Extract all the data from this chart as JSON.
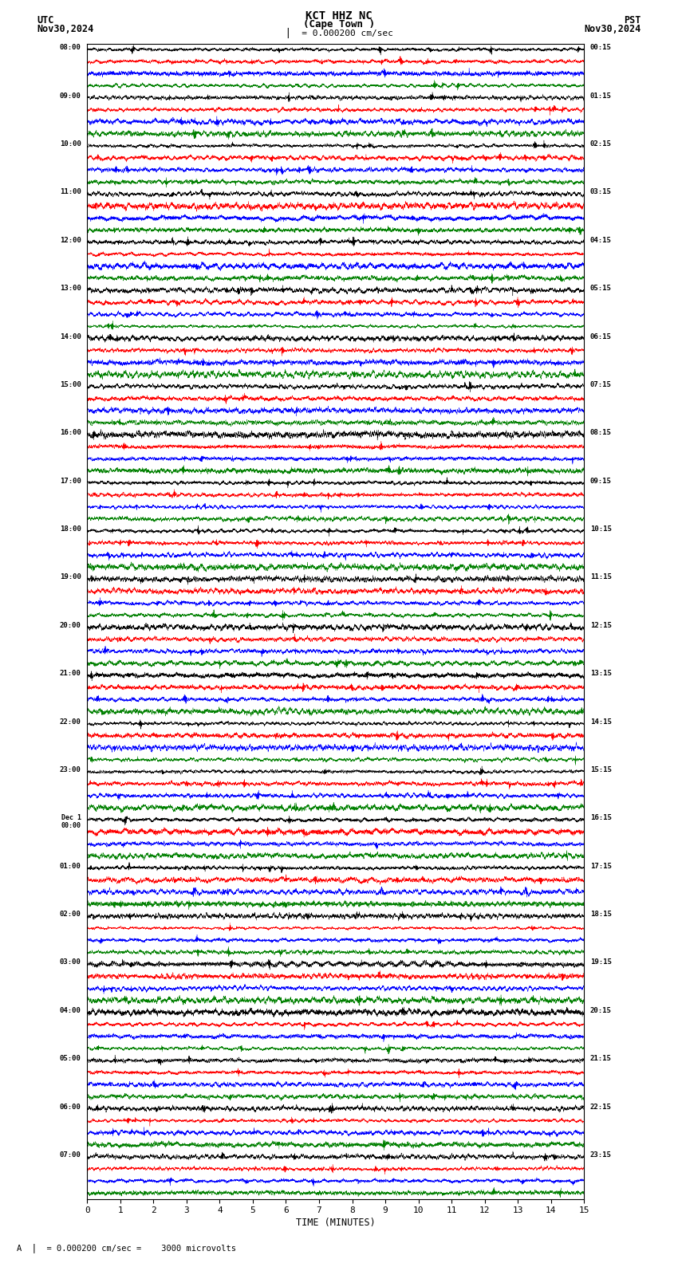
{
  "title_line1": "KCT HHZ NC",
  "title_line2": "(Cape Town )",
  "scale_label": "= 0.000200 cm/sec",
  "utc_label": "UTC",
  "utc_date": "Nov30,2024",
  "pst_label": "PST",
  "pst_date": "Nov30,2024",
  "xlabel": "TIME (MINUTES)",
  "bottom_label": "= 0.000200 cm/sec =    3000 microvolts",
  "xmin": 0,
  "xmax": 15,
  "xticks": [
    0,
    1,
    2,
    3,
    4,
    5,
    6,
    7,
    8,
    9,
    10,
    11,
    12,
    13,
    14,
    15
  ],
  "colors": [
    "black",
    "red",
    "blue",
    "green"
  ],
  "background": "white",
  "left_times": [
    "08:00",
    "09:00",
    "10:00",
    "11:00",
    "12:00",
    "13:00",
    "14:00",
    "15:00",
    "16:00",
    "17:00",
    "18:00",
    "19:00",
    "20:00",
    "21:00",
    "22:00",
    "23:00",
    "Dec 1\n00:00",
    "01:00",
    "02:00",
    "03:00",
    "04:00",
    "05:00",
    "06:00",
    "07:00"
  ],
  "right_times": [
    "00:15",
    "01:15",
    "02:15",
    "03:15",
    "04:15",
    "05:15",
    "06:15",
    "07:15",
    "08:15",
    "09:15",
    "10:15",
    "11:15",
    "12:15",
    "13:15",
    "14:15",
    "15:15",
    "16:15",
    "17:15",
    "18:15",
    "19:15",
    "20:15",
    "21:15",
    "22:15",
    "23:15"
  ],
  "n_rows": 24,
  "traces_per_row": 4,
  "points_per_trace": 9000,
  "noise_seed": 42
}
